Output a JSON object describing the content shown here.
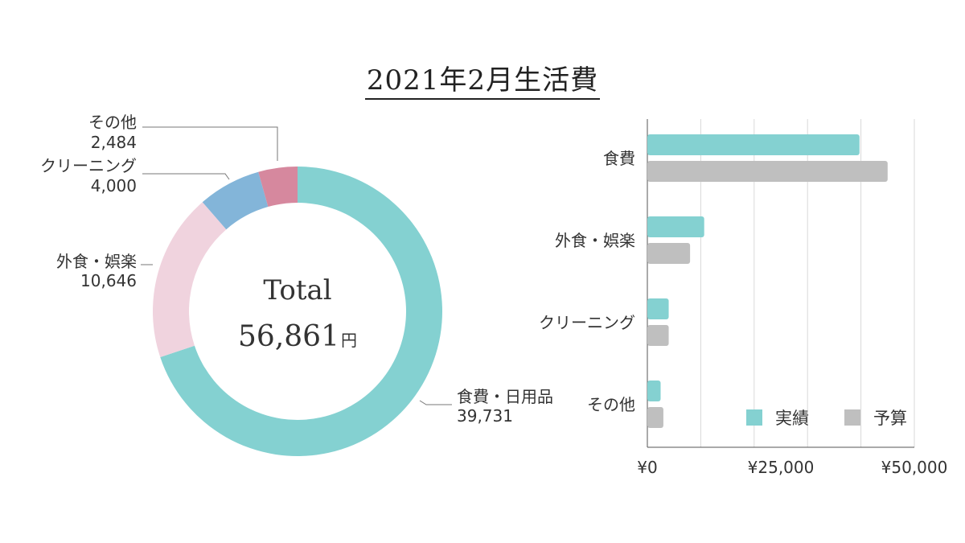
{
  "title": "2021年2月生活費",
  "colors": {
    "teal": "#84D1D1",
    "pink": "#F0D3DE",
    "blue": "#83B5D9",
    "rose": "#D6889E",
    "gray": "#BFBFBF"
  },
  "chart_data": [
    {
      "type": "pie",
      "center_label": "Total",
      "total_value": "56,861",
      "total_unit": "円",
      "slices": [
        {
          "label": "食費・日用品",
          "value": 39731,
          "value_text": "39,731",
          "color": "#84D1D1"
        },
        {
          "label": "外食・娯楽",
          "value": 10646,
          "value_text": "10,646",
          "color": "#F0D3DE"
        },
        {
          "label": "クリーニング",
          "value": 4000,
          "value_text": "4,000",
          "color": "#83B5D9"
        },
        {
          "label": "その他",
          "value": 2484,
          "value_text": "2,484",
          "color": "#D6889E"
        }
      ]
    },
    {
      "type": "bar",
      "orientation": "horizontal",
      "categories": [
        "食費",
        "外食・娯楽",
        "クリーニング",
        "その他"
      ],
      "series": [
        {
          "name": "実績",
          "values": [
            39731,
            10646,
            4000,
            2484
          ],
          "color": "#84D1D1"
        },
        {
          "name": "予算",
          "values": [
            45000,
            8000,
            4000,
            3000
          ],
          "color": "#BFBFBF"
        }
      ],
      "xlim": [
        0,
        50000
      ],
      "xticks": [
        "¥0",
        "¥25,000",
        "¥50,000"
      ],
      "grid": true,
      "legend": "bottom-right"
    }
  ]
}
